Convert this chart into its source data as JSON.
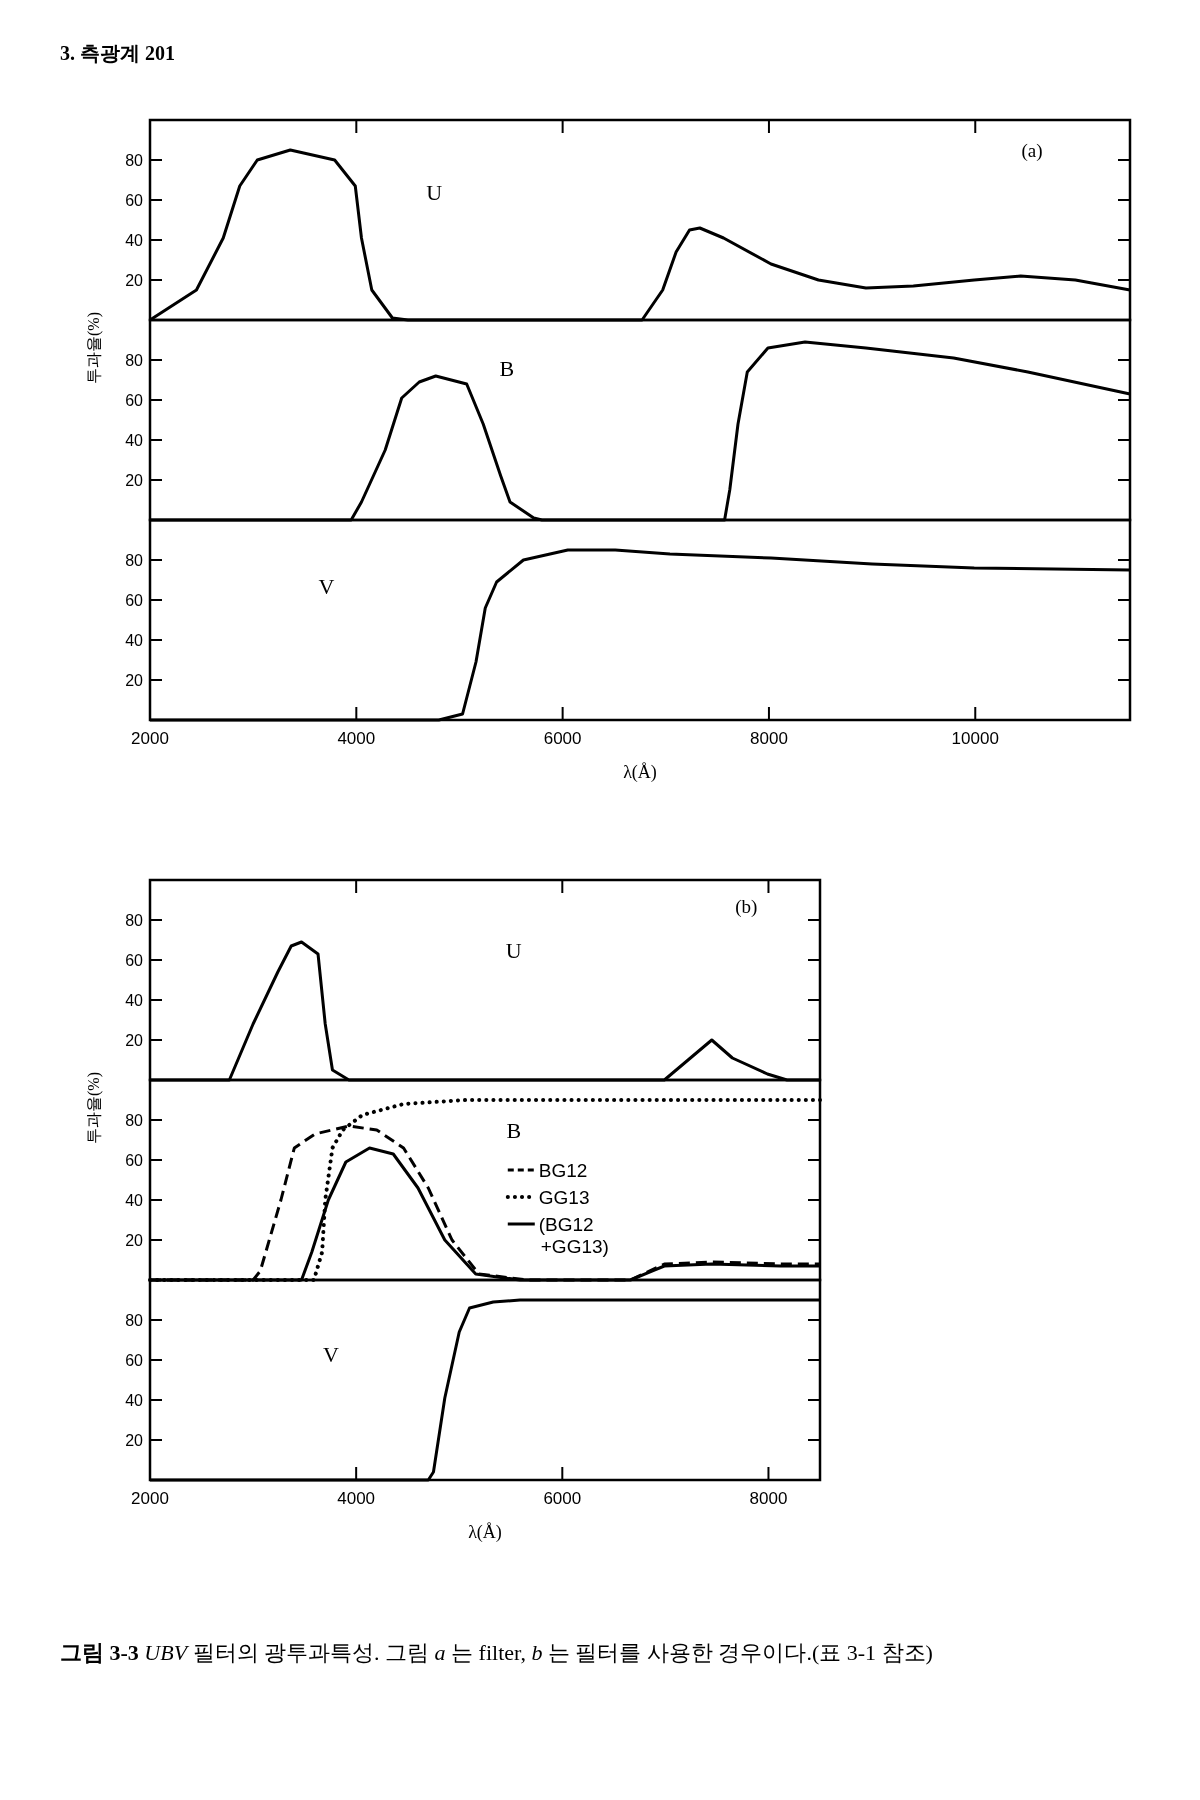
{
  "chart_data": [
    {
      "type": "line",
      "title": "U",
      "annotations": [
        "(a)",
        "**그림 3-3**  *UBV* 필터의 광투과특성. 그림 *a* 는 filter, *b* 는 필터를 사용한 경우이다.(표 3-1 참조)",
        "3. 측광계 201"
      ],
      "xlim": [
        2000,
        11500
      ],
      "xticks": [
        2000,
        4000,
        6000,
        8000,
        10000
      ],
      "ylim": [
        0,
        100
      ],
      "yticks": [
        20,
        40,
        60,
        80
      ],
      "tick_labels": "y",
      "series": [
        {
          "color": "#000000",
          "x": [
            2000,
            2450,
            2710,
            2870,
            3040,
            3360,
            3790,
            3990,
            4050,
            4150,
            4350,
            4500,
            6770,
            6970,
            7100,
            7230,
            7330,
            7560,
            8020,
            8480,
            8940,
            9400,
            9990,
            10440,
            10970,
            11500
          ],
          "values": [
            0,
            15,
            41,
            67,
            80,
            85,
            80,
            67,
            41,
            15,
            1,
            0,
            0,
            15,
            34,
            45,
            46,
            41,
            28,
            20,
            16,
            17,
            20,
            22,
            20,
            15
          ]
        }
      ]
    },
    {
      "type": "line",
      "title": "B",
      "ylabel": "투과율(%)",
      "xlim": [
        2000,
        11500
      ],
      "xticks": [
        2000,
        4000,
        6000,
        8000,
        10000
      ],
      "ylim": [
        0,
        100
      ],
      "yticks": [
        20,
        40,
        60,
        80
      ],
      "tick_labels": "y",
      "series": [
        {
          "color": "#000000",
          "x": [
            2000,
            3950,
            4050,
            4280,
            4440,
            4610,
            4770,
            5070,
            5230,
            5400,
            5490,
            5720,
            5800,
            7570,
            7620,
            7700,
            7790,
            7990,
            8350,
            8940,
            9790,
            10510,
            11500
          ],
          "values": [
            0,
            0,
            9,
            35,
            61,
            69,
            72,
            68,
            48,
            22,
            9,
            1,
            0,
            0,
            15,
            48,
            74,
            86,
            89,
            86,
            81,
            74,
            63
          ]
        }
      ]
    },
    {
      "type": "line",
      "title": "V",
      "xlabel": "λ(Å)",
      "xlim": [
        2000,
        11500
      ],
      "xticks": [
        2000,
        4000,
        6000,
        8000,
        10000
      ],
      "ylim": [
        0,
        100
      ],
      "yticks": [
        20,
        40,
        60,
        80
      ],
      "series": [
        {
          "color": "#000000",
          "x": [
            2000,
            4800,
            5030,
            5160,
            5250,
            5360,
            5620,
            6050,
            6510,
            7040,
            8020,
            9000,
            9990,
            11500
          ],
          "values": [
            0,
            0,
            3,
            29,
            56,
            69,
            80,
            85,
            85,
            83,
            81,
            78,
            76,
            75
          ]
        }
      ]
    },
    {
      "type": "line",
      "title": "U",
      "annotations": [
        "(b)"
      ],
      "xlim": [
        2000,
        8500
      ],
      "xticks": [
        2000,
        4000,
        6000,
        8000
      ],
      "ylim": [
        0,
        100
      ],
      "yticks": [
        20,
        40,
        60,
        80
      ],
      "tick_labels": "y",
      "series": [
        {
          "color": "#000000",
          "x": [
            2000,
            2770,
            3000,
            3240,
            3370,
            3470,
            3630,
            3700,
            3770,
            3930,
            6990,
            7220,
            7450,
            7650,
            7990,
            8180,
            8500
          ],
          "values": [
            0,
            0,
            28,
            54,
            67,
            69,
            63,
            28,
            5,
            0,
            0,
            10,
            20,
            11,
            3,
            0,
            0
          ]
        }
      ]
    },
    {
      "type": "line",
      "title": "B",
      "ylabel": "투과율(%)",
      "xlim": [
        2000,
        8500
      ],
      "xticks": [
        2000,
        4000,
        6000,
        8000
      ],
      "ylim": [
        0,
        100
      ],
      "yticks": [
        20,
        40,
        60,
        80
      ],
      "tick_labels": "y",
      "legend": "center",
      "series": [
        {
          "name": "BG12",
          "color": "#000000",
          "line_style": "dashed",
          "x": [
            2000,
            3000,
            3070,
            3270,
            3400,
            3600,
            3930,
            4200,
            4460,
            4700,
            4930,
            5190,
            5660,
            6660,
            6990,
            7450,
            8120,
            8500
          ],
          "values": [
            0,
            0,
            4.5,
            40,
            66,
            73,
            77,
            75,
            66,
            46,
            20,
            3,
            0,
            0,
            8,
            9,
            8,
            8
          ]
        },
        {
          "name": "GG13",
          "color": "#000000",
          "line_style": "dotted",
          "x": [
            2000,
            3590,
            3670,
            3700,
            3770,
            3870,
            4060,
            4460,
            5060,
            8500
          ],
          "values": [
            0,
            0,
            14,
            40,
            66,
            75,
            82.5,
            88,
            90,
            90
          ]
        },
        {
          "name": "(BG12 +GG13)",
          "color": "#000000",
          "line_style": "solid",
          "x": [
            2000,
            3470,
            3570,
            3730,
            3900,
            4130,
            4360,
            4600,
            4860,
            5160,
            5590,
            6660,
            6990,
            7450,
            8120,
            8500
          ],
          "values": [
            0,
            0,
            14,
            40,
            59,
            66,
            63,
            46,
            20,
            3,
            0,
            0,
            7,
            8,
            7,
            7
          ]
        }
      ]
    },
    {
      "type": "line",
      "title": "V",
      "xlabel": "λ(Å)",
      "xlim": [
        2000,
        8500
      ],
      "xticks": [
        2000,
        4000,
        6000,
        8000
      ],
      "ylim": [
        0,
        100
      ],
      "yticks": [
        20,
        40,
        60,
        80
      ],
      "series": [
        {
          "color": "#000000",
          "x": [
            2000,
            4700,
            4750,
            4860,
            5000,
            5100,
            5330,
            5590,
            8500
          ],
          "values": [
            0,
            0,
            4,
            41,
            74,
            86,
            89,
            90,
            90
          ]
        }
      ]
    }
  ]
}
